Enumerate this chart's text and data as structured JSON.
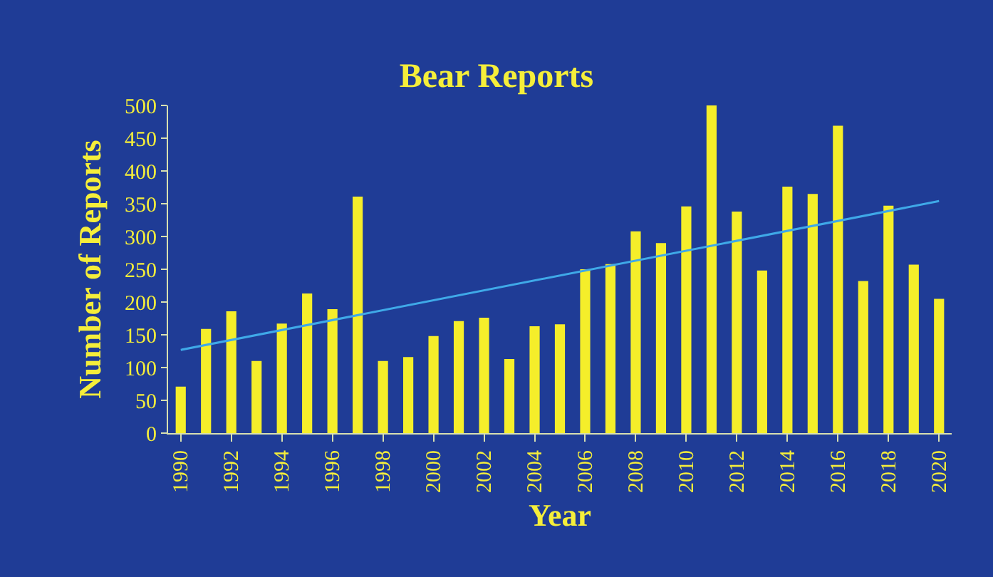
{
  "chart_data": {
    "type": "bar",
    "title": "Bear Reports",
    "xlabel": "Year",
    "ylabel": "Number of Reports",
    "categories": [
      "1990",
      null,
      "1992",
      null,
      "1994",
      null,
      "1996",
      null,
      "1998",
      null,
      "2000",
      null,
      "2002",
      null,
      "2004",
      null,
      "2006",
      null,
      "2008",
      null,
      "2010",
      null,
      "2012",
      null,
      "2014",
      null,
      "2016",
      null,
      "2018",
      null,
      "2020"
    ],
    "series": [
      {
        "color": "#f5ee2a",
        "values": [
          71,
          159,
          186,
          110,
          167,
          213,
          189,
          361,
          110,
          116,
          148,
          171,
          176,
          113,
          163,
          166,
          250,
          258,
          308,
          290,
          346,
          500,
          338,
          248,
          376,
          365,
          469,
          232,
          347,
          257,
          205
        ]
      },
      {
        "type": "line",
        "color": "#3fa9e8",
        "values": [
          127,
          null,
          null,
          null,
          null,
          null,
          null,
          null,
          null,
          null,
          null,
          null,
          null,
          null,
          null,
          null,
          null,
          null,
          null,
          null,
          null,
          null,
          null,
          null,
          null,
          null,
          null,
          null,
          null,
          null,
          354
        ]
      }
    ],
    "ylim": [
      0,
      500
    ],
    "yticks": [
      0,
      50,
      100,
      150,
      200,
      250,
      300,
      350,
      400,
      450,
      500
    ],
    "grid": false
  }
}
